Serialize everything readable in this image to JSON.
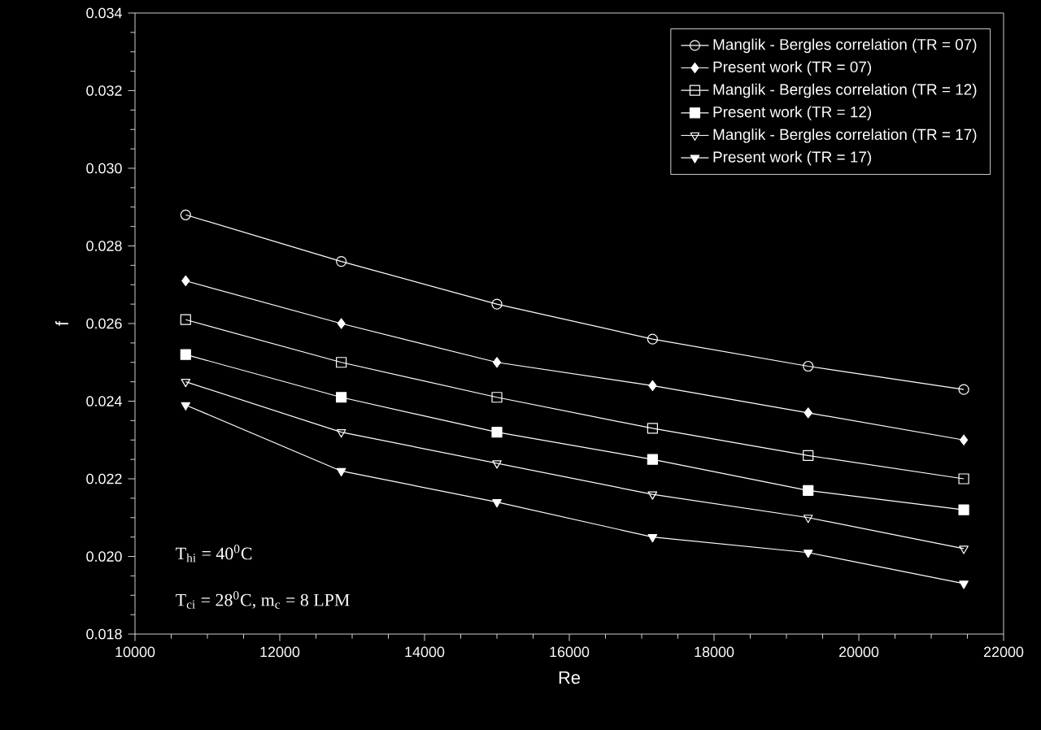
{
  "chart_data": {
    "type": "line",
    "xlabel": "Re",
    "ylabel": "f",
    "x": [
      10700,
      12850,
      15000,
      17150,
      19300,
      21450
    ],
    "series": [
      {
        "name": "Manglik - Bergles correlation (TR = 07)",
        "color": "#ffffff",
        "marker": "circle",
        "values": [
          0.0288,
          0.0276,
          0.0265,
          0.0256,
          0.0249,
          0.0243
        ]
      },
      {
        "name": "Present work (TR = 07)",
        "color": "#ffffff",
        "marker": "diamond",
        "values": [
          0.0271,
          0.026,
          0.025,
          0.0244,
          0.0237,
          0.023
        ]
      },
      {
        "name": "Manglik - Bergles correlation (TR = 12)",
        "color": "#ffffff",
        "marker": "square",
        "values": [
          0.0261,
          0.025,
          0.0241,
          0.0233,
          0.0226,
          0.022
        ]
      },
      {
        "name": "Present work (TR = 12)",
        "color": "#ffffff",
        "marker": "square",
        "values": [
          0.0252,
          0.0241,
          0.0232,
          0.0225,
          0.0217,
          0.0212
        ]
      },
      {
        "name": "Manglik - Bergles correlation (TR = 17)",
        "color": "#ffffff",
        "marker": "triangle",
        "values": [
          0.0245,
          0.0232,
          0.0224,
          0.0216,
          0.021,
          0.0202
        ]
      },
      {
        "name": "Present work (TR = 17)",
        "color": "#ffffff",
        "marker": "triangle",
        "values": [
          0.0239,
          0.0222,
          0.0214,
          0.0205,
          0.0201,
          0.0193
        ]
      }
    ],
    "xlim": [
      10000,
      22000
    ],
    "xticks": [
      10000,
      12000,
      14000,
      16000,
      18000,
      20000,
      22000
    ],
    "ylim": [
      0.018,
      0.034
    ],
    "yticks": [
      0.018,
      {
        "value": 0.02,
        "label": "0.020"
      },
      0.022,
      0.024,
      0.026,
      0.028,
      {
        "value": 0.03,
        "label": "0.030"
      },
      0.032,
      0.034
    ],
    "legend": "top right",
    "grid": false,
    "annotations": [
      "T$_{hi}$ = 40$^{0}$C",
      "T$_{ci}$ = 28$^{0}$C, m$_{c}$ = 8 LPM"
    ]
  }
}
